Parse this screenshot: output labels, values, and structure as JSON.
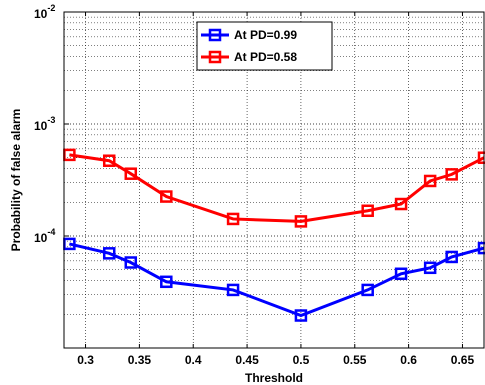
{
  "chart_data": {
    "type": "line",
    "xlabel": "Threshold",
    "ylabel": "Probability of false alarm",
    "xlim": [
      0.28,
      0.67
    ],
    "ylim": [
      1e-05,
      0.01
    ],
    "yscale": "log",
    "grid": true,
    "legend_position": "top-center",
    "x_ticks": [
      "0.3",
      "0.35",
      "0.4",
      "0.45",
      "0.5",
      "0.55",
      "0.6",
      "0.65"
    ],
    "x_tick_values": [
      0.3,
      0.35,
      0.4,
      0.45,
      0.5,
      0.55,
      0.6,
      0.65
    ],
    "y_ticks": [
      {
        "value": 0.01,
        "base": "10",
        "exp": "-2"
      },
      {
        "value": 0.001,
        "base": "10",
        "exp": "-3"
      },
      {
        "value": 0.0001,
        "base": "10",
        "exp": "-4"
      }
    ],
    "series": [
      {
        "name": "At PD=0.99",
        "color": "#0000ff",
        "x": [
          0.285,
          0.322,
          0.342,
          0.375,
          0.437,
          0.5,
          0.562,
          0.593,
          0.62,
          0.64,
          0.67
        ],
        "y": [
          8.5e-05,
          7e-05,
          5.8e-05,
          3.9e-05,
          3.3e-05,
          1.95e-05,
          3.3e-05,
          4.6e-05,
          5.2e-05,
          6.5e-05,
          7.8e-05
        ]
      },
      {
        "name": "At PD=0.58",
        "color": "#ff0000",
        "x": [
          0.285,
          0.322,
          0.342,
          0.375,
          0.437,
          0.5,
          0.562,
          0.593,
          0.62,
          0.64,
          0.67
        ],
        "y": [
          0.00053,
          0.00047,
          0.00036,
          0.000225,
          0.000142,
          0.000135,
          0.000168,
          0.000193,
          0.00031,
          0.000355,
          0.0005
        ]
      }
    ]
  }
}
